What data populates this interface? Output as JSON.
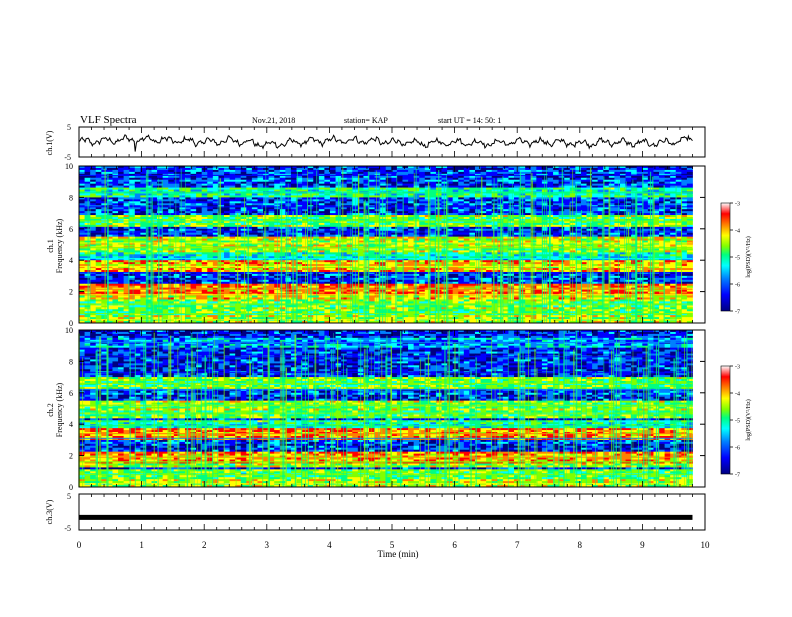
{
  "header": {
    "title": "VLF Spectra",
    "date": "Nov.21, 2018",
    "station": "station= KAP",
    "start_ut": "start  UT =   14: 50: 1"
  },
  "panels": {
    "ch1_wave": {
      "ylabel": "ch.1(V)"
    },
    "ch1_spec": {
      "ylabel_channel": "ch.1",
      "ylabel": "Frequency  (kHz)"
    },
    "ch2_spec": {
      "ylabel_channel": "ch.2",
      "ylabel": "Frequency  (kHz)"
    },
    "ch3_wave": {
      "ylabel": "ch.3(V)"
    }
  },
  "colorbar": {
    "label": "log(PSD)(V²/Hz)",
    "ticks": [
      "-3",
      "-4",
      "-5",
      "-6",
      "-7"
    ],
    "colors": [
      "#000080",
      "#0000ff",
      "#0080ff",
      "#00ffff",
      "#00ff80",
      "#80ff00",
      "#ffff00",
      "#ff8000",
      "#ff0000",
      "#ffffff"
    ]
  },
  "chart_data": [
    {
      "type": "line",
      "name": "ch.1 waveform",
      "ylabel": "ch.1(V)",
      "ylim": [
        -5,
        5
      ],
      "y_ticks": [
        "5",
        "-5"
      ],
      "xlim": [
        0,
        10
      ],
      "x_min": [
        0,
        0.5,
        1,
        1.5,
        2,
        2.5,
        3,
        3.5,
        4,
        4.5,
        5,
        5.5,
        6,
        6.5,
        7,
        7.5,
        8,
        8.5,
        9,
        9.5,
        9.8
      ],
      "y_approx": [
        0,
        0.5,
        1,
        0.5,
        0,
        0.5,
        -1,
        0,
        0.5,
        0.5,
        0,
        -0.5,
        0,
        -0.5,
        0,
        0,
        -0.5,
        0,
        -0.5,
        0,
        1
      ],
      "notes": "spike near 0.9 min to about -3 V"
    },
    {
      "type": "heatmap",
      "name": "ch.1 spectrogram",
      "ylabel": "Frequency  (kHz)",
      "xlim": [
        0,
        10
      ],
      "ylim": [
        0,
        10
      ],
      "y_ticks": [
        "0",
        "2",
        "4",
        "6",
        "8",
        "10"
      ],
      "value": "log(PSD)",
      "zlim": [
        -7,
        -3
      ],
      "data_end_min": 9.8,
      "bands_khz": [
        {
          "f": 0.2,
          "level": -4.6
        },
        {
          "f": 0.6,
          "level": -5.0
        },
        {
          "f": 1.2,
          "level": -4.9
        },
        {
          "f": 1.8,
          "level": -4.4
        },
        {
          "f": 2.15,
          "level": -3.9
        },
        {
          "f": 3.2,
          "level": -6.5
        },
        {
          "f": 3.6,
          "level": -4.2
        },
        {
          "f": 4.1,
          "level": -5.6
        },
        {
          "f": 4.8,
          "level": -4.8
        },
        {
          "f": 5.1,
          "level": -4.6
        },
        {
          "f": 5.8,
          "level": -6.6
        },
        {
          "f": 6.5,
          "level": -5.0
        },
        {
          "f": 7.4,
          "level": -6.7
        },
        {
          "f": 8.3,
          "level": -5.4
        },
        {
          "f": 9.4,
          "level": -6.5
        }
      ],
      "background_level": -6.2
    },
    {
      "type": "heatmap",
      "name": "ch.2 spectrogram",
      "ylabel": "Frequency  (kHz)",
      "xlim": [
        0,
        10
      ],
      "ylim": [
        0,
        10
      ],
      "y_ticks": [
        "0",
        "2",
        "4",
        "6",
        "8",
        "10"
      ],
      "value": "log(PSD)",
      "zlim": [
        -7,
        -3
      ],
      "data_end_min": 9.8,
      "bands_khz": [
        {
          "f": 0.2,
          "level": -4.6
        },
        {
          "f": 0.8,
          "level": -5.0
        },
        {
          "f": 1.6,
          "level": -4.8
        },
        {
          "f": 1.9,
          "level": -4.0
        },
        {
          "f": 3.1,
          "level": -6.4
        },
        {
          "f": 3.4,
          "level": -3.9
        },
        {
          "f": 3.9,
          "level": -5.4
        },
        {
          "f": 4.7,
          "level": -5.0
        },
        {
          "f": 5.2,
          "level": -4.8
        },
        {
          "f": 6.2,
          "level": -6.4
        },
        {
          "f": 6.6,
          "level": -5.0
        },
        {
          "f": 7.3,
          "level": -6.7
        },
        {
          "f": 8.3,
          "level": -6.5
        },
        {
          "f": 9.2,
          "level": -6.0
        }
      ],
      "background_level": -6.3
    },
    {
      "type": "line",
      "name": "ch.3 waveform",
      "ylabel": "ch.3(V)",
      "ylim": [
        -5,
        5
      ],
      "y_ticks": [
        "5",
        "-5"
      ],
      "xlim": [
        0,
        10
      ],
      "x_min": [
        0,
        9.8
      ],
      "y": [
        -1.5,
        -1.5
      ]
    }
  ],
  "x_axis": {
    "label": "Time  (min)",
    "ticks": [
      "0",
      "1",
      "2",
      "3",
      "4",
      "5",
      "6",
      "7",
      "8",
      "9",
      "10"
    ]
  }
}
